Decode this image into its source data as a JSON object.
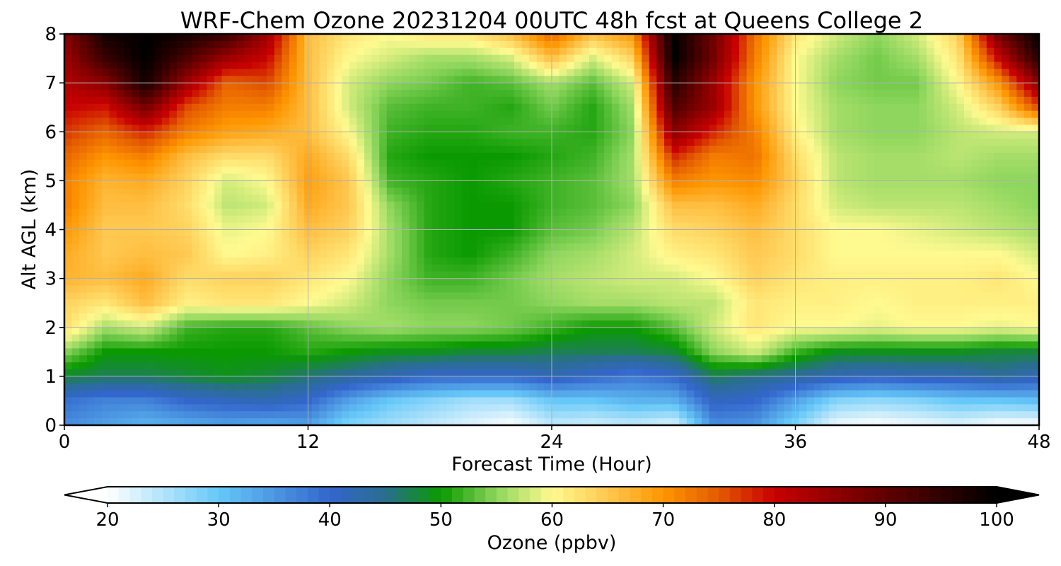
{
  "chart_data": {
    "type": "heatmap",
    "title": "WRF-Chem Ozone  20231204 00UTC 48h fcst at Queens College 2",
    "xlabel": "Forecast Time (Hour)",
    "ylabel": "Alt AGL (km)",
    "xlim": [
      0,
      48
    ],
    "ylim": [
      0,
      8
    ],
    "x_ticks": [
      "0",
      "12",
      "24",
      "36",
      "48"
    ],
    "y_ticks": [
      "0",
      "1",
      "2",
      "3",
      "4",
      "5",
      "6",
      "7",
      "8"
    ],
    "grid": true,
    "colorbar": {
      "label": "Ozone  (ppbv)",
      "min": 20,
      "max": 100,
      "ticks": [
        "20",
        "30",
        "40",
        "50",
        "60",
        "70",
        "80",
        "90",
        "100"
      ],
      "extend": "both",
      "under_color": "#ffffff",
      "over_color": "#000000",
      "stops": [
        [
          20,
          "#ffffff"
        ],
        [
          30,
          "#66c8f8"
        ],
        [
          40,
          "#3366cc"
        ],
        [
          45,
          "#2a6e8e"
        ],
        [
          50,
          "#0a9a00"
        ],
        [
          55,
          "#8ed65e"
        ],
        [
          60,
          "#fffa90"
        ],
        [
          65,
          "#ffc850"
        ],
        [
          70,
          "#ff9600"
        ],
        [
          75,
          "#e35a00"
        ],
        [
          80,
          "#c80000"
        ],
        [
          90,
          "#600000"
        ],
        [
          100,
          "#000000"
        ]
      ]
    },
    "time_hours": [
      0,
      2,
      4,
      6,
      8,
      10,
      12,
      14,
      16,
      18,
      20,
      22,
      24,
      26,
      28,
      30,
      32,
      34,
      36,
      38,
      40,
      42,
      44,
      46,
      48
    ],
    "altitude_km": [
      0,
      0.5,
      1,
      1.5,
      2,
      2.5,
      3,
      3.5,
      4,
      4.5,
      5,
      5.5,
      6,
      6.5,
      7,
      7.5,
      8
    ],
    "ozone_ppbv": [
      [
        36,
        34,
        32,
        33,
        34,
        33,
        34,
        28,
        26,
        24,
        22,
        20,
        24,
        23,
        24,
        22,
        36,
        35,
        28,
        21,
        20,
        21,
        22,
        20,
        20
      ],
      [
        39,
        37,
        37,
        40,
        41,
        42,
        40,
        34,
        30,
        28,
        26,
        26,
        30,
        30,
        32,
        32,
        41,
        40,
        34,
        28,
        27,
        28,
        30,
        30,
        31
      ],
      [
        48,
        47,
        47,
        48,
        49,
        48,
        46,
        44,
        42,
        40,
        40,
        40,
        42,
        40,
        38,
        40,
        47,
        45,
        44,
        42,
        41,
        42,
        42,
        44,
        42
      ],
      [
        55,
        50,
        50,
        50,
        50,
        50,
        51,
        50,
        49,
        49,
        48,
        48,
        47,
        47,
        47,
        48,
        55,
        58,
        52,
        49,
        49,
        49,
        49,
        48,
        48
      ],
      [
        63,
        56,
        58,
        52,
        51,
        51,
        53,
        55,
        56,
        55,
        55,
        54,
        52,
        50,
        50,
        53,
        58,
        62,
        60,
        60,
        59,
        60,
        60,
        59,
        60
      ],
      [
        64,
        62,
        66,
        61,
        62,
        62,
        60,
        58,
        55,
        54,
        54,
        54,
        55,
        56,
        56,
        57,
        57,
        62,
        61,
        61,
        60,
        61,
        61,
        61,
        61
      ],
      [
        67,
        66,
        68,
        63,
        64,
        64,
        62,
        60,
        55,
        52,
        52,
        54,
        56,
        57,
        58,
        58,
        60,
        64,
        62,
        61,
        61,
        61,
        61,
        62,
        60
      ],
      [
        68,
        65,
        66,
        65,
        60,
        61,
        64,
        62,
        56,
        51,
        50,
        52,
        55,
        56,
        58,
        61,
        62,
        65,
        63,
        60,
        60,
        60,
        60,
        60,
        58
      ],
      [
        70,
        65,
        65,
        64,
        59,
        60,
        66,
        64,
        56,
        51,
        50,
        50,
        53,
        54,
        57,
        63,
        64,
        66,
        63,
        60,
        60,
        59,
        58,
        57,
        56
      ],
      [
        72,
        66,
        66,
        63,
        57,
        58,
        68,
        65,
        55,
        51,
        50,
        50,
        52,
        53,
        55,
        66,
        66,
        68,
        63,
        58,
        57,
        57,
        57,
        56,
        55
      ],
      [
        72,
        67,
        68,
        64,
        58,
        60,
        69,
        65,
        52,
        51,
        50,
        51,
        52,
        53,
        56,
        72,
        70,
        71,
        64,
        57,
        56,
        56,
        56,
        55,
        55
      ],
      [
        74,
        70,
        72,
        66,
        63,
        63,
        68,
        63,
        51,
        50,
        50,
        50,
        51,
        52,
        56,
        78,
        72,
        73,
        63,
        57,
        56,
        56,
        57,
        56,
        56
      ],
      [
        77,
        74,
        78,
        72,
        69,
        68,
        66,
        60,
        52,
        51,
        51,
        52,
        52,
        51,
        55,
        86,
        78,
        72,
        61,
        56,
        55,
        55,
        57,
        58,
        58
      ],
      [
        80,
        79,
        88,
        76,
        72,
        72,
        66,
        58,
        53,
        52,
        52,
        51,
        54,
        51,
        56,
        92,
        84,
        70,
        60,
        56,
        55,
        55,
        58,
        64,
        76
      ],
      [
        82,
        86,
        98,
        84,
        74,
        76,
        66,
        58,
        55,
        54,
        52,
        53,
        56,
        53,
        58,
        96,
        84,
        70,
        60,
        55,
        54,
        54,
        60,
        70,
        86
      ],
      [
        84,
        94,
        100,
        92,
        84,
        80,
        66,
        60,
        58,
        56,
        56,
        58,
        66,
        58,
        64,
        100,
        88,
        72,
        60,
        56,
        54,
        56,
        62,
        80,
        96
      ],
      [
        86,
        98,
        100,
        98,
        94,
        84,
        66,
        62,
        60,
        62,
        62,
        66,
        74,
        66,
        70,
        100,
        88,
        73,
        62,
        58,
        55,
        58,
        64,
        88,
        100
      ]
    ]
  }
}
